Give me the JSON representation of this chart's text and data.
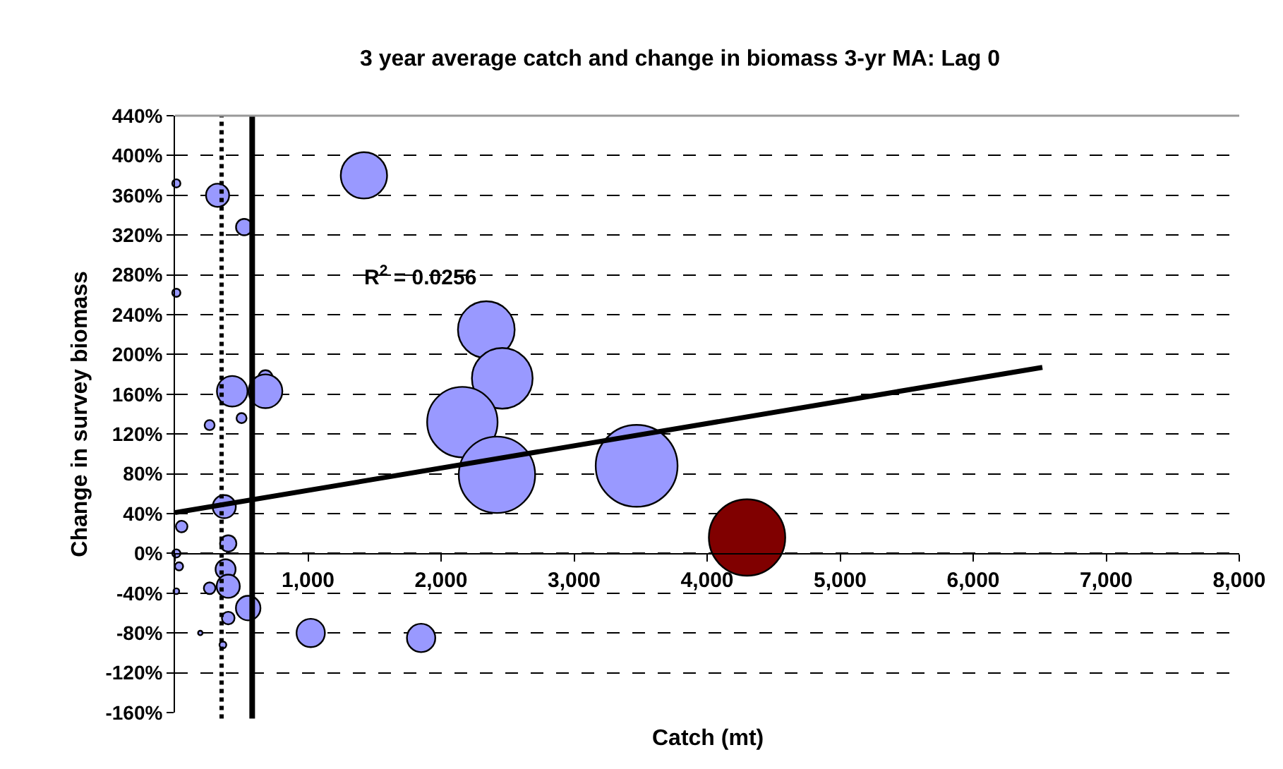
{
  "chart_data": {
    "type": "bubble",
    "title": "3 year average catch and change in biomass 3-yr MA: Lag 0",
    "xlabel": "Catch (mt)",
    "ylabel": "Change in survey biomass",
    "annotations": [
      "R$^{2}$ = 0.0256"
    ],
    "xlim": [
      0,
      8000
    ],
    "ylim": [
      -160,
      440
    ],
    "xticks": [
      {
        "value": 0,
        "label": null
      },
      {
        "value": 1000,
        "label": "1,000"
      },
      {
        "value": 2000,
        "label": "2,000"
      },
      {
        "value": 3000,
        "label": "3,000"
      },
      {
        "value": 4000,
        "label": "4,000"
      },
      {
        "value": 5000,
        "label": "5,000"
      },
      {
        "value": 6000,
        "label": "6,000"
      },
      {
        "value": 7000,
        "label": "7,000"
      },
      {
        "value": 8000,
        "label": "8,000"
      }
    ],
    "yticks": [
      {
        "value": -160,
        "label": "-160%"
      },
      {
        "value": -120,
        "label": "-120%"
      },
      {
        "value": -80,
        "label": "-80%"
      },
      {
        "value": -40,
        "label": "-40%"
      },
      {
        "value": 0,
        "label": "0%"
      },
      {
        "value": 40,
        "label": "40%"
      },
      {
        "value": 80,
        "label": "80%"
      },
      {
        "value": 120,
        "label": "120%"
      },
      {
        "value": 160,
        "label": "160%"
      },
      {
        "value": 200,
        "label": "200%"
      },
      {
        "value": 240,
        "label": "240%"
      },
      {
        "value": 280,
        "label": "280%"
      },
      {
        "value": 320,
        "label": "320%"
      },
      {
        "value": 360,
        "label": "360%"
      },
      {
        "value": 400,
        "label": "400%"
      },
      {
        "value": 440,
        "label": "440%"
      }
    ],
    "grid": "y",
    "ref_lines": [
      {
        "axis": "x",
        "value": 350,
        "line_style": "dotted",
        "color": "#000000"
      },
      {
        "axis": "x",
        "value": 580,
        "line_style": "solid",
        "color": "#000000"
      }
    ],
    "series": [
      {
        "x": [
          1420,
          2340,
          2460,
          2160,
          2420,
          3470,
          4300,
          1850,
          1020,
          10,
          320,
          520,
          10,
          430,
          680,
          680,
          260,
          500,
          370,
          50,
          10,
          30,
          400,
          380,
          400,
          260,
          10,
          550,
          400,
          190,
          360
        ],
        "values": [
          380,
          225,
          176,
          132,
          79,
          88,
          16,
          -85,
          -80,
          372,
          360,
          328,
          262,
          163,
          177,
          163,
          129,
          136,
          47,
          27,
          0,
          -13,
          10,
          -16,
          -33,
          -35,
          -38,
          -55,
          -65,
          -80,
          -92
        ],
        "sizes": [
          0.32,
          0.48,
          0.55,
          0.74,
          0.87,
          1,
          0.87,
          0.12,
          0.12,
          0.01,
          0.08,
          0.04,
          0.01,
          0.14,
          0.03,
          0.17,
          0.015,
          0.015,
          0.08,
          0.02,
          0.01,
          0.01,
          0.04,
          0.06,
          0.08,
          0.02,
          0.005,
          0.09,
          0.024,
          0.003,
          0.007
        ],
        "colors": [
          "#9999ff",
          "#9999ff",
          "#9999ff",
          "#9999ff",
          "#9999ff",
          "#9999ff",
          "#800000",
          "#9999ff",
          "#9999ff",
          "#9999ff",
          "#9999ff",
          "#9999ff",
          "#9999ff",
          "#9999ff",
          "#9999ff",
          "#9999ff",
          "#9999ff",
          "#9999ff",
          "#9999ff",
          "#9999ff",
          "#9999ff",
          "#9999ff",
          "#9999ff",
          "#9999ff",
          "#9999ff",
          "#9999ff",
          "#9999ff",
          "#9999ff",
          "#9999ff",
          "#9999ff",
          "#9999ff"
        ]
      },
      {
        "type": "line",
        "x": [
          0,
          6520
        ],
        "values": [
          41,
          187
        ],
        "color": "#000000",
        "line_style": "solid",
        "marker": "none"
      }
    ]
  }
}
